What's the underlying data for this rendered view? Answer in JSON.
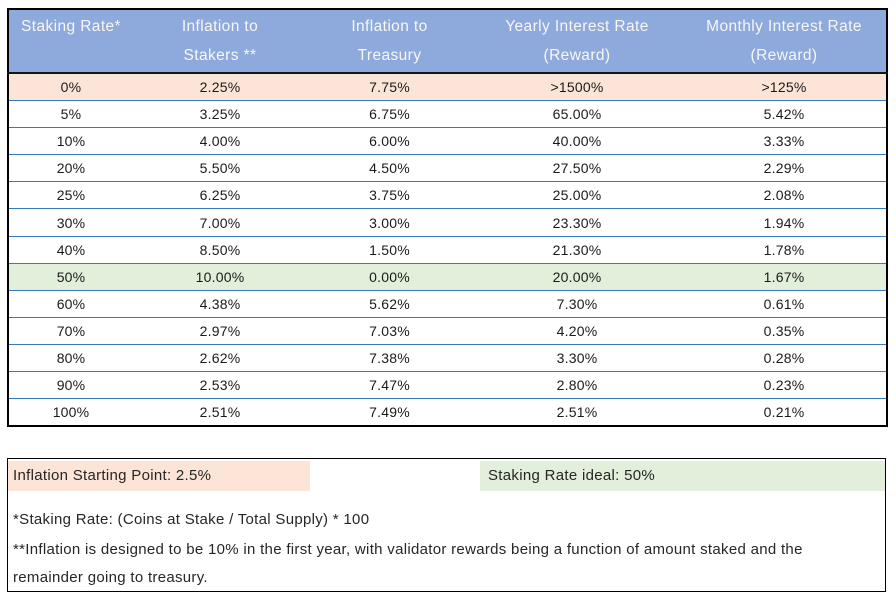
{
  "table": {
    "headers": [
      {
        "line1": "Staking Rate*",
        "line2": ""
      },
      {
        "line1": "Inflation to",
        "line2": "Stakers **"
      },
      {
        "line1": "Inflation to",
        "line2": "Treasury"
      },
      {
        "line1": "Yearly Interest Rate",
        "line2": "(Reward)"
      },
      {
        "line1": "Monthly Interest Rate",
        "line2": "(Reward)"
      }
    ],
    "rows": [
      {
        "values": [
          "0%",
          "2.25%",
          "7.75%",
          ">1500%",
          ">125%"
        ],
        "highlight": "peach"
      },
      {
        "values": [
          "5%",
          "3.25%",
          "6.75%",
          "65.00%",
          "5.42%"
        ],
        "highlight": null
      },
      {
        "values": [
          "10%",
          "4.00%",
          "6.00%",
          "40.00%",
          "3.33%"
        ],
        "highlight": null
      },
      {
        "values": [
          "20%",
          "5.50%",
          "4.50%",
          "27.50%",
          "2.29%"
        ],
        "highlight": null
      },
      {
        "values": [
          "25%",
          "6.25%",
          "3.75%",
          "25.00%",
          "2.08%"
        ],
        "highlight": null
      },
      {
        "values": [
          "30%",
          "7.00%",
          "3.00%",
          "23.30%",
          "1.94%"
        ],
        "highlight": null
      },
      {
        "values": [
          "40%",
          "8.50%",
          "1.50%",
          "21.30%",
          "1.78%"
        ],
        "highlight": null
      },
      {
        "values": [
          "50%",
          "10.00%",
          "0.00%",
          "20.00%",
          "1.67%"
        ],
        "highlight": "green"
      },
      {
        "values": [
          "60%",
          "4.38%",
          "5.62%",
          "7.30%",
          "0.61%"
        ],
        "highlight": null
      },
      {
        "values": [
          "70%",
          "2.97%",
          "7.03%",
          "4.20%",
          "0.35%"
        ],
        "highlight": null
      },
      {
        "values": [
          "80%",
          "2.62%",
          "7.38%",
          "3.30%",
          "0.28%"
        ],
        "highlight": null
      },
      {
        "values": [
          "90%",
          "2.53%",
          "7.47%",
          "2.80%",
          "0.23%"
        ],
        "highlight": null
      },
      {
        "values": [
          "100%",
          "2.51%",
          "7.49%",
          "2.51%",
          "0.21%"
        ],
        "highlight": null
      }
    ]
  },
  "notes": {
    "inflation_starting_point": "Inflation Starting Point: 2.5%",
    "staking_rate_ideal": "Staking Rate ideal: 50%",
    "footnote_staking_rate": "*Staking Rate: (Coins at Stake / Total Supply) * 100",
    "footnote_inflation_line1": "**Inflation is designed to be 10% in the first year, with validator rewards being a function of amount staked and the",
    "footnote_inflation_line2": "remainder going to treasury."
  },
  "colors": {
    "header_bg": "#8EA9DB",
    "header_text": "#F7F7F7",
    "peach_bg": "#FCE4D6",
    "green_bg": "#E2EFDA",
    "row_border": "#3878BE",
    "outer_border": "#000000",
    "text": "#1A1A1A"
  },
  "chart_data": {
    "type": "table",
    "title": "Staking Rate vs Inflation Split and Interest Rates",
    "columns": [
      "Staking Rate*",
      "Inflation to Stakers **",
      "Inflation to Treasury",
      "Yearly Interest Rate (Reward)",
      "Monthly Interest Rate (Reward)"
    ],
    "rows": [
      [
        "0%",
        "2.25%",
        "7.75%",
        ">1500%",
        ">125%"
      ],
      [
        "5%",
        "3.25%",
        "6.75%",
        "65.00%",
        "5.42%"
      ],
      [
        "10%",
        "4.00%",
        "6.00%",
        "40.00%",
        "3.33%"
      ],
      [
        "20%",
        "5.50%",
        "4.50%",
        "27.50%",
        "2.29%"
      ],
      [
        "25%",
        "6.25%",
        "3.75%",
        "25.00%",
        "2.08%"
      ],
      [
        "30%",
        "7.00%",
        "3.00%",
        "23.30%",
        "1.94%"
      ],
      [
        "40%",
        "8.50%",
        "1.50%",
        "21.30%",
        "1.78%"
      ],
      [
        "50%",
        "10.00%",
        "0.00%",
        "20.00%",
        "1.67%"
      ],
      [
        "60%",
        "4.38%",
        "5.62%",
        "7.30%",
        "0.61%"
      ],
      [
        "70%",
        "2.97%",
        "7.03%",
        "4.20%",
        "0.35%"
      ],
      [
        "80%",
        "2.62%",
        "7.38%",
        "3.30%",
        "0.28%"
      ],
      [
        "90%",
        "2.53%",
        "7.47%",
        "2.80%",
        "0.23%"
      ],
      [
        "100%",
        "2.51%",
        "7.49%",
        "2.51%",
        "0.21%"
      ]
    ],
    "highlighted_rows": {
      "0%": "peach",
      "50%": "green"
    },
    "annotations": [
      "Inflation Starting Point: 2.5%",
      "Staking Rate ideal: 50%",
      "*Staking Rate: (Coins at Stake / Total Supply) * 100",
      "**Inflation is designed to be 10% in the first year, with validator rewards being a function of amount staked and the remainder going to treasury."
    ]
  }
}
